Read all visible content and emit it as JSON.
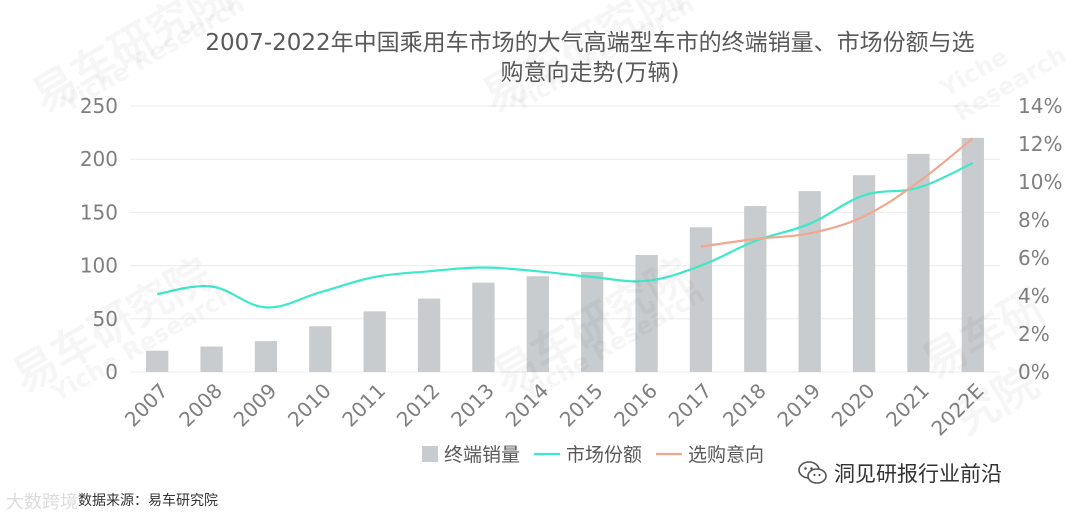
{
  "chart_data": {
    "type": "bar",
    "title": "2007-2022年中国乘用车市场的大气高端型车市的终端销量、市场份额与选购意向走势(万辆)",
    "title_lines": [
      "2007-2022年中国乘用车市场的大气高端型车市的终端销量、市场份额与选",
      "购意向走势(万辆)"
    ],
    "categories": [
      "2007",
      "2008",
      "2009",
      "2010",
      "2011",
      "2012",
      "2013",
      "2014",
      "2015",
      "2016",
      "2017",
      "2018",
      "2019",
      "2020",
      "2021",
      "2022E"
    ],
    "ylim_left": [
      0,
      250
    ],
    "yticks_left": [
      "0",
      "50",
      "100",
      "150",
      "200",
      "250"
    ],
    "ylim_right": [
      0,
      14
    ],
    "yticks_right": [
      "0%",
      "2%",
      "4%",
      "6%",
      "8%",
      "10%",
      "12%",
      "14%"
    ],
    "series": [
      {
        "name": "终端销量",
        "type": "bar",
        "axis": "left",
        "color": "#c9ccce",
        "values": [
          20,
          24,
          29,
          43,
          57,
          69,
          84,
          90,
          94,
          110,
          136,
          156,
          170,
          185,
          205,
          220
        ]
      },
      {
        "name": "市场份额",
        "type": "line",
        "axis": "right",
        "color": "#3ee8c8",
        "values": [
          4.1,
          4.5,
          3.4,
          4.2,
          5.0,
          5.3,
          5.5,
          5.3,
          5.0,
          4.8,
          5.6,
          6.9,
          7.8,
          9.3,
          9.7,
          11.0
        ]
      },
      {
        "name": "选购意向",
        "type": "line",
        "axis": "right",
        "color": "#f0a890",
        "values": [
          null,
          null,
          null,
          null,
          null,
          null,
          null,
          null,
          null,
          null,
          6.6,
          7.0,
          7.3,
          8.2,
          10.0,
          12.3
        ]
      }
    ],
    "legend": "bottom-center",
    "grid": true
  },
  "footer": {
    "source": "数据来源：易车研究院",
    "brand": "大数跨境",
    "account": "洞见研报行业前沿"
  },
  "watermark": {
    "zh": "易车研究院",
    "en": "Yiche Research"
  }
}
